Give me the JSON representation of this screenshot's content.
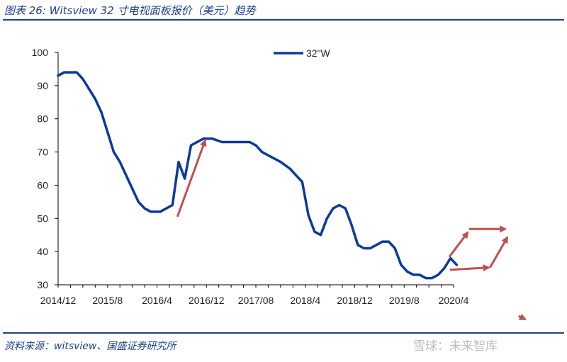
{
  "header": {
    "title": "图表 26:  Witsview 32 寸电视面板报价（美元）趋势"
  },
  "footer": {
    "source": "资料来源：witsview、国盛证券研究所",
    "watermark": "雪球：未来智库"
  },
  "chart_data": {
    "type": "line",
    "title": "",
    "xlabel": "",
    "ylabel": "",
    "ylim": [
      30,
      100
    ],
    "yticks": [
      30,
      40,
      50,
      60,
      70,
      80,
      90,
      100
    ],
    "xtick_labels": [
      "2014/12",
      "2015/8",
      "2016/4",
      "2016/12",
      "2017/08",
      "2018/4",
      "2018/12",
      "2019/8",
      "2020/4"
    ],
    "xtick_month_index": [
      0,
      8,
      16,
      24,
      32,
      40,
      48,
      56,
      64
    ],
    "x_range_months": [
      0,
      64
    ],
    "legend": "top-center",
    "colors": {
      "series": "#0b3a9c",
      "arrow": "#c0504d",
      "axis": "#000000"
    },
    "series": [
      {
        "name": "32\"W",
        "x_month_index": [
          0,
          1,
          2,
          3,
          4,
          5,
          6,
          7,
          8,
          9,
          10,
          11,
          12,
          13,
          14,
          15,
          16,
          16.5,
          17.5,
          18.5,
          19.5,
          20.5,
          21.5,
          22.5,
          23.5,
          25,
          26.5,
          28,
          29.5,
          31,
          32,
          33,
          34.5,
          36,
          37.5,
          38.5,
          39.5,
          40.5,
          41.5,
          42.5,
          43.5,
          44.5,
          45.5,
          46.5,
          47.5,
          48.5,
          49.5,
          50.5,
          51.5,
          52.5,
          53.5,
          54.5,
          55.5,
          56.5,
          57.5,
          58.5,
          59.5,
          60.5,
          61.5,
          62.5,
          63.5,
          64.5
        ],
        "values": [
          93,
          94,
          94,
          94,
          92,
          89,
          86,
          82,
          76,
          70,
          67,
          63,
          59,
          55,
          53,
          52,
          52,
          52,
          53,
          54,
          67,
          62,
          72,
          73,
          74,
          74,
          73,
          73,
          73,
          73,
          72,
          70,
          68.5,
          67,
          65,
          63,
          61,
          51,
          46,
          45,
          50,
          53,
          54,
          53,
          48,
          42,
          41,
          41,
          42,
          43,
          43,
          41,
          36,
          34,
          33,
          33,
          32,
          32,
          33,
          35,
          38,
          36,
          34
        ]
      }
    ],
    "annotations": [
      {
        "type": "arrow",
        "from": [
          19.3,
          50.5
        ],
        "to": [
          23.8,
          73.5
        ]
      },
      {
        "type": "arrow",
        "from": [
          63.3,
          38.4
        ],
        "to": [
          66.3,
          45.8
        ]
      },
      {
        "type": "arrow",
        "from": [
          66.5,
          46.8
        ],
        "to": [
          72.4,
          46.8
        ]
      },
      {
        "type": "arrow",
        "from": [
          63.4,
          34.5
        ],
        "to": [
          69.7,
          35.2
        ]
      },
      {
        "type": "arrow",
        "from": [
          69.9,
          35.2
        ],
        "to": [
          72.7,
          44.3
        ]
      },
      {
        "type": "arrow",
        "from": [
          74.5,
          20.6
        ],
        "to": [
          75.6,
          19.6
        ]
      }
    ]
  }
}
